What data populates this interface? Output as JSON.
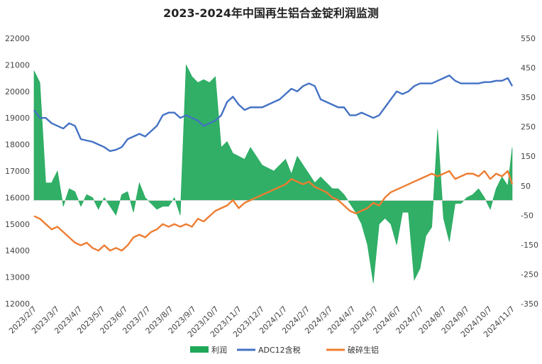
{
  "chart_data": {
    "type": "line",
    "title": "2023-2024年中国再生铝合金锭利润监测",
    "xlabel": "",
    "ylabel": "",
    "left_axis": {
      "ylim": [
        12000,
        22000
      ],
      "ticks": [
        "12000",
        "13000",
        "14000",
        "15000",
        "16000",
        "17000",
        "18000",
        "19000",
        "20000",
        "21000",
        "22000"
      ]
    },
    "right_axis": {
      "ylim": [
        -350,
        550
      ],
      "ticks": [
        "-350",
        "-250",
        "-150",
        "-50",
        "50",
        "150",
        "250",
        "350",
        "450",
        "550"
      ]
    },
    "x_categories": [
      "2023/2/7",
      "2023/3/7",
      "2023/4/7",
      "2023/5/7",
      "2023/6/7",
      "2023/7/7",
      "2023/8/7",
      "2023/9/7",
      "2023/10/7",
      "2023/11/7",
      "2023/12/7",
      "2024/1/7",
      "2024/2/7",
      "2024/3/7",
      "2024/4/7",
      "2024/5/7",
      "2024/6/7",
      "2024/7/7",
      "2024/8/7",
      "2024/9/7",
      "2024/10/7",
      "2024/11/7"
    ],
    "x_range_days": [
      0,
      654
    ],
    "grid": false,
    "legend_position": "bottom",
    "colors": {
      "profit": "#1fa85a",
      "adc12": "#4472c4",
      "scrap": "#ed7d31"
    },
    "series": [
      {
        "name": "利润",
        "axis": "right",
        "style": "area",
        "x": [
          0,
          8,
          16,
          24,
          32,
          40,
          48,
          56,
          64,
          72,
          80,
          88,
          96,
          104,
          112,
          120,
          128,
          136,
          144,
          152,
          160,
          168,
          176,
          184,
          192,
          200,
          208,
          216,
          224,
          232,
          240,
          248,
          256,
          264,
          272,
          280,
          288,
          296,
          304,
          312,
          320,
          328,
          336,
          344,
          352,
          360,
          368,
          376,
          384,
          392,
          400,
          408,
          416,
          424,
          432,
          440,
          448,
          456,
          464,
          472,
          480,
          488,
          496,
          504,
          512,
          520,
          528,
          536,
          544,
          552,
          560,
          568,
          576,
          584,
          592,
          600,
          608,
          616,
          624,
          632,
          640,
          648,
          654
        ],
        "values": [
          440,
          400,
          60,
          60,
          100,
          -20,
          40,
          30,
          -20,
          20,
          10,
          -30,
          10,
          -20,
          -50,
          20,
          30,
          -40,
          60,
          10,
          -10,
          -30,
          -20,
          -20,
          10,
          -50,
          460,
          420,
          400,
          410,
          400,
          420,
          180,
          200,
          160,
          150,
          140,
          180,
          150,
          120,
          110,
          100,
          120,
          140,
          90,
          150,
          120,
          90,
          60,
          80,
          60,
          40,
          40,
          20,
          -10,
          -40,
          -80,
          -150,
          -280,
          -80,
          -60,
          -80,
          -150,
          -40,
          -40,
          -270,
          -230,
          -120,
          -90,
          240,
          -60,
          -140,
          -10,
          -10,
          10,
          20,
          40,
          10,
          -30,
          40,
          80,
          50,
          180
        ]
      },
      {
        "name": "ADC12含税",
        "axis": "left",
        "style": "line",
        "x": [
          0,
          8,
          16,
          24,
          32,
          40,
          48,
          56,
          64,
          72,
          80,
          88,
          96,
          104,
          112,
          120,
          128,
          136,
          144,
          152,
          160,
          168,
          176,
          184,
          192,
          200,
          208,
          216,
          224,
          232,
          240,
          248,
          256,
          264,
          272,
          280,
          288,
          296,
          304,
          312,
          320,
          328,
          336,
          344,
          352,
          360,
          368,
          376,
          384,
          392,
          400,
          408,
          416,
          424,
          432,
          440,
          448,
          456,
          464,
          472,
          480,
          488,
          496,
          504,
          512,
          520,
          528,
          536,
          544,
          552,
          560,
          568,
          576,
          584,
          592,
          600,
          608,
          616,
          624,
          632,
          640,
          648,
          654
        ],
        "values": [
          19300,
          19000,
          19000,
          18800,
          18700,
          18600,
          18800,
          18700,
          18200,
          18150,
          18100,
          18000,
          17900,
          17750,
          17800,
          17900,
          18200,
          18300,
          18400,
          18300,
          18500,
          18700,
          19100,
          19200,
          19200,
          19000,
          19100,
          19000,
          18900,
          18700,
          18800,
          18900,
          19100,
          19600,
          19800,
          19500,
          19300,
          19400,
          19400,
          19400,
          19500,
          19600,
          19700,
          19900,
          20100,
          20000,
          20200,
          20300,
          20200,
          19700,
          19600,
          19500,
          19400,
          19400,
          19100,
          19100,
          19200,
          19100,
          19000,
          19100,
          19400,
          19700,
          20000,
          19900,
          20000,
          20200,
          20300,
          20300,
          20300,
          20400,
          20500,
          20600,
          20400,
          20300,
          20300,
          20300,
          20300,
          20350,
          20350,
          20400,
          20400,
          20500,
          20200
        ]
      },
      {
        "name": "破碎生铝",
        "axis": "left",
        "style": "line",
        "x": [
          0,
          8,
          16,
          24,
          32,
          40,
          48,
          56,
          64,
          72,
          80,
          88,
          96,
          104,
          112,
          120,
          128,
          136,
          144,
          152,
          160,
          168,
          176,
          184,
          192,
          200,
          208,
          216,
          224,
          232,
          240,
          248,
          256,
          264,
          272,
          280,
          288,
          296,
          304,
          312,
          320,
          328,
          336,
          344,
          352,
          360,
          368,
          376,
          384,
          392,
          400,
          408,
          416,
          424,
          432,
          440,
          448,
          456,
          464,
          472,
          480,
          488,
          496,
          504,
          512,
          520,
          528,
          536,
          544,
          552,
          560,
          568,
          576,
          584,
          592,
          600,
          608,
          616,
          624,
          632,
          640,
          648,
          654
        ],
        "values": [
          15300,
          15200,
          15000,
          14800,
          14900,
          14700,
          14500,
          14300,
          14200,
          14300,
          14100,
          14000,
          14200,
          14000,
          14100,
          14000,
          14200,
          14500,
          14600,
          14500,
          14700,
          14800,
          15000,
          14900,
          15000,
          14900,
          15000,
          14900,
          15200,
          15100,
          15300,
          15500,
          15600,
          15700,
          15900,
          15600,
          15800,
          15900,
          16000,
          16100,
          16200,
          16300,
          16400,
          16500,
          16700,
          16600,
          16500,
          16600,
          16400,
          16300,
          16200,
          16000,
          15900,
          15700,
          15500,
          15400,
          15500,
          15600,
          15800,
          15700,
          16000,
          16200,
          16300,
          16400,
          16500,
          16600,
          16700,
          16800,
          16900,
          16800,
          16900,
          17000,
          16700,
          16800,
          16900,
          16900,
          16800,
          17000,
          16700,
          16900,
          16800,
          17000,
          16500
        ]
      }
    ]
  }
}
